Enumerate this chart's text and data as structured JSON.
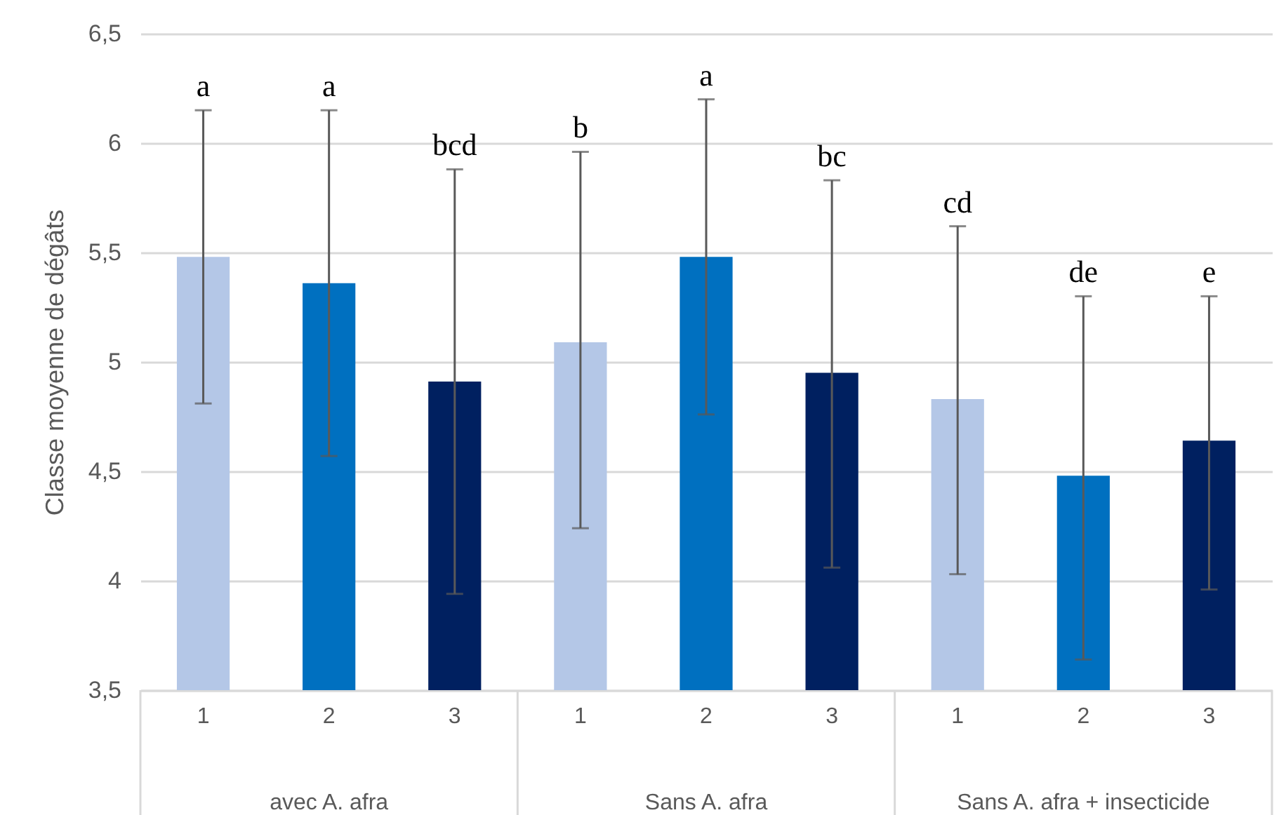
{
  "chart_data": {
    "type": "bar",
    "ylabel": "Classe moyenne de dégâts",
    "categories": [
      "1",
      "2",
      "3",
      "1",
      "2",
      "3",
      "1",
      "2",
      "3"
    ],
    "values": [
      5.48,
      5.36,
      4.91,
      5.09,
      5.48,
      4.95,
      4.83,
      4.48,
      4.64
    ],
    "colors": [
      "#b4c7e7",
      "#0070c0",
      "#002060",
      "#b4c7e7",
      "#0070c0",
      "#002060",
      "#b4c7e7",
      "#0070c0",
      "#002060"
    ],
    "errors": [
      [
        4.81,
        6.15
      ],
      [
        4.57,
        6.15
      ],
      [
        3.94,
        5.88
      ],
      [
        4.24,
        5.96
      ],
      [
        4.76,
        6.2
      ],
      [
        4.06,
        5.83
      ],
      [
        4.03,
        5.62
      ],
      [
        3.64,
        5.3
      ],
      [
        3.96,
        5.3
      ]
    ],
    "annotations": [
      "avec A. afra",
      "Sans A. afra",
      "Sans A. afra + insecticide",
      {
        "text": "a",
        "y": 6.15
      },
      {
        "text": "a",
        "y": 6.15
      },
      {
        "text": "bcd",
        "y": 5.88
      },
      {
        "text": "b",
        "y": 5.96
      },
      {
        "text": "a",
        "y": 6.2
      },
      {
        "text": "bc",
        "y": 5.83
      },
      {
        "text": "cd",
        "y": 5.62
      },
      {
        "text": "de",
        "y": 5.3
      },
      {
        "text": "e",
        "y": 5.3
      }
    ],
    "ylim": [
      3.5,
      6.5
    ],
    "yticks": [
      {
        "value": 3.5,
        "label": "3,5"
      },
      {
        "value": 4,
        "label": "4"
      },
      {
        "value": 4.5,
        "label": "4,5"
      },
      {
        "value": 5,
        "label": "5"
      },
      {
        "value": 5.5,
        "label": "5,5"
      },
      {
        "value": 6,
        "label": "6"
      },
      {
        "value": 6.5,
        "label": "6,5"
      }
    ],
    "grid": "y"
  }
}
